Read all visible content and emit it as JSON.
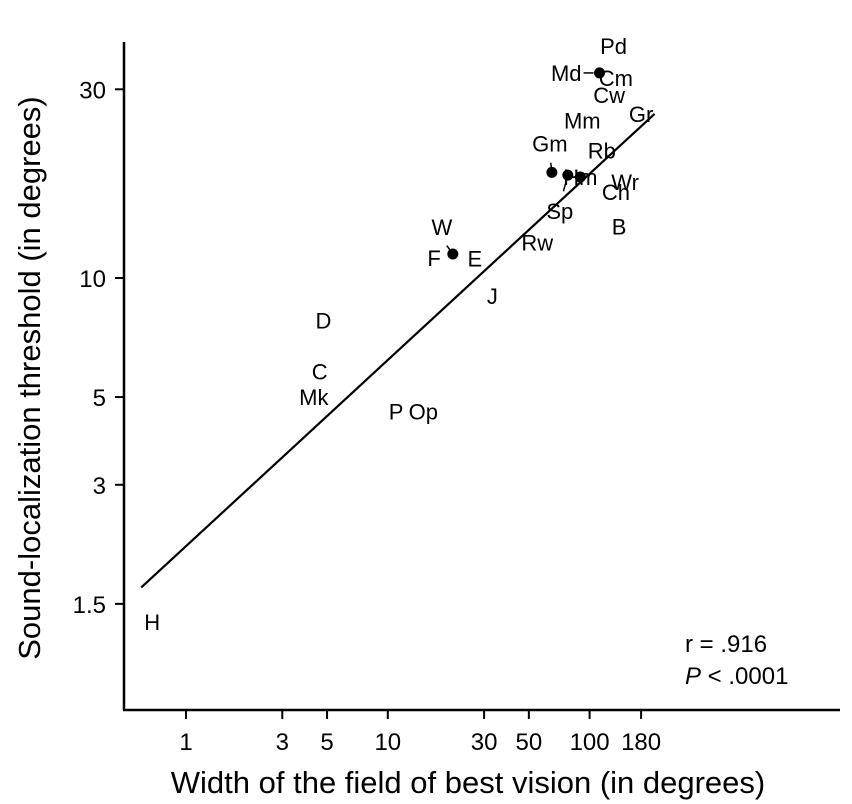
{
  "chart_data": {
    "type": "scatter",
    "xlabel": "Width of the field of best vision (in degrees)",
    "ylabel": "Sound-localization threshold (in degrees)",
    "xscale": "log",
    "yscale": "log",
    "xlim": [
      0.6,
      240
    ],
    "ylim": [
      1.1,
      42
    ],
    "xticks": [
      1,
      3,
      5,
      10,
      30,
      50,
      100,
      180
    ],
    "yticks": [
      1.5,
      3,
      5,
      10,
      30
    ],
    "grid": false,
    "points": [
      {
        "label": "H",
        "x": 0.68,
        "y": 1.35,
        "marker": false
      },
      {
        "label": "Mk",
        "x": 4.3,
        "y": 5.0,
        "marker": false
      },
      {
        "label": "C",
        "x": 4.6,
        "y": 5.8,
        "marker": false
      },
      {
        "label": "D",
        "x": 4.8,
        "y": 7.8,
        "marker": false
      },
      {
        "label": "P",
        "x": 11,
        "y": 4.6,
        "marker": false
      },
      {
        "label": "Op",
        "x": 15,
        "y": 4.6,
        "marker": false
      },
      {
        "label": "W",
        "x": 21,
        "y": 11.5,
        "marker": true
      },
      {
        "label": "F",
        "x": 21,
        "y": 11.5,
        "marker": false
      },
      {
        "label": "E",
        "x": 27,
        "y": 11.2,
        "marker": false
      },
      {
        "label": "J",
        "x": 33,
        "y": 9.0,
        "marker": false
      },
      {
        "label": "Rw",
        "x": 55,
        "y": 12.3,
        "marker": false
      },
      {
        "label": "Gm",
        "x": 65,
        "y": 18.5,
        "marker": true
      },
      {
        "label": "Sp",
        "x": 78,
        "y": 18.2,
        "marker": true
      },
      {
        "label": "Hm",
        "x": 90,
        "y": 18.0,
        "marker": true
      },
      {
        "label": "Md",
        "x": 112,
        "y": 33,
        "marker": true
      },
      {
        "label": "Pd",
        "x": 112,
        "y": 33,
        "marker": false
      },
      {
        "label": "Cm",
        "x": 135,
        "y": 32,
        "marker": false
      },
      {
        "label": "Cw",
        "x": 125,
        "y": 29,
        "marker": false
      },
      {
        "label": "Mm",
        "x": 92,
        "y": 25,
        "marker": false
      },
      {
        "label": "Rb",
        "x": 115,
        "y": 21,
        "marker": false
      },
      {
        "label": "Wr",
        "x": 150,
        "y": 17.5,
        "marker": false
      },
      {
        "label": "Ch",
        "x": 135,
        "y": 16.5,
        "marker": false
      },
      {
        "label": "Gr",
        "x": 180,
        "y": 26,
        "marker": false
      },
      {
        "label": "B",
        "x": 140,
        "y": 13.5,
        "marker": false
      }
    ],
    "fit_line": {
      "x": [
        0.6,
        210
      ],
      "y": [
        1.65,
        26
      ]
    },
    "annotations": {
      "r": "r = .916",
      "p_italic": "P",
      "p_rest": " < .0001"
    }
  }
}
